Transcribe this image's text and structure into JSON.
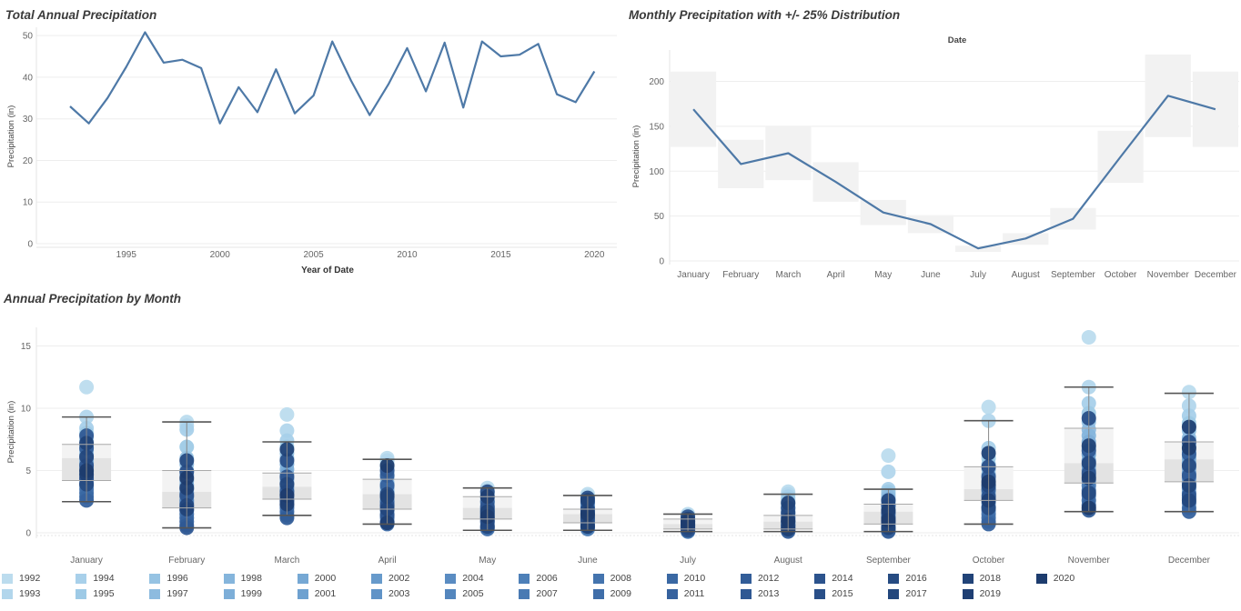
{
  "titles": {
    "annual": "Total Annual Precipitation",
    "monthly": "Monthly Precipitation with +/- 25% Distribution",
    "bymonth": "Annual Precipitation by Month"
  },
  "chart_data": [
    {
      "type": "line",
      "title": "Total Annual Precipitation",
      "xlabel": "Year of Date",
      "ylabel": "Precipitation (in)",
      "x": [
        1992,
        1993,
        1994,
        1995,
        1996,
        1997,
        1998,
        1999,
        2000,
        2001,
        2002,
        2003,
        2004,
        2005,
        2006,
        2007,
        2008,
        2009,
        2010,
        2011,
        2012,
        2013,
        2014,
        2015,
        2016,
        2017,
        2018,
        2019,
        2020
      ],
      "y": [
        33,
        28.9,
        35,
        42.5,
        50.8,
        43.5,
        44.2,
        42.2,
        28.9,
        37.6,
        31.6,
        41.9,
        31.3,
        35.6,
        48.6,
        39.2,
        30.9,
        38.3,
        47,
        36.6,
        48.3,
        32.7,
        48.6,
        45,
        45.4,
        48,
        35.9,
        34,
        41.4
      ],
      "xticks": [
        "1995",
        "2000",
        "2005",
        "2010",
        "2015",
        "2020"
      ],
      "xtick_values": [
        1995,
        2000,
        2005,
        2010,
        2015,
        2020
      ],
      "yticks": [
        "0",
        "10",
        "20",
        "30",
        "40",
        "50"
      ],
      "ylim": [
        0,
        52
      ],
      "color": "#4e79a7"
    },
    {
      "type": "line",
      "title": "Monthly Precipitation with +/- 25% Distribution",
      "header": "Date",
      "ylabel": "Precipitation (in)",
      "categories": [
        "January",
        "February",
        "March",
        "April",
        "May",
        "June",
        "July",
        "August",
        "September",
        "October",
        "November",
        "December"
      ],
      "values": [
        169,
        108,
        120,
        88,
        54,
        41,
        14,
        25,
        47,
        116,
        184,
        169
      ],
      "band_low": [
        127,
        81,
        90,
        66,
        40,
        31,
        10,
        18,
        35,
        87,
        138,
        127
      ],
      "band_high": [
        211,
        135,
        150,
        110,
        68,
        51,
        17,
        31,
        59,
        145,
        230,
        211
      ],
      "yticks": [
        "0",
        "50",
        "100",
        "150",
        "200"
      ],
      "ylim": [
        0,
        235
      ],
      "color": "#4e79a7",
      "band_color": "#f2f2f2"
    },
    {
      "type": "scatter",
      "title": "Annual Precipitation by Month",
      "ylabel": "Precipitation (in)",
      "categories": [
        "January",
        "February",
        "March",
        "April",
        "May",
        "June",
        "July",
        "August",
        "September",
        "October",
        "November",
        "December"
      ],
      "yticks": [
        "0",
        "5",
        "10",
        "15"
      ],
      "ylim": [
        0,
        16.5
      ],
      "whisker_low": [
        2.5,
        0.4,
        1.4,
        0.7,
        0.2,
        0.2,
        0.1,
        0.1,
        0.1,
        0.7,
        1.7,
        1.7
      ],
      "whisker_high": [
        9.3,
        8.9,
        7.3,
        5.9,
        3.6,
        3.0,
        1.5,
        3.1,
        3.5,
        9.0,
        11.7,
        11.2
      ],
      "box_q1": [
        4.2,
        2.0,
        2.7,
        1.9,
        1.1,
        0.8,
        0.3,
        0.3,
        0.7,
        2.6,
        4.0,
        4.1
      ],
      "box_median": [
        6.0,
        3.3,
        3.7,
        3.1,
        2.0,
        1.5,
        0.7,
        0.9,
        1.7,
        3.5,
        5.6,
        5.9
      ],
      "box_q3": [
        7.1,
        5.0,
        4.8,
        4.3,
        2.9,
        1.9,
        1.1,
        1.4,
        2.3,
        5.3,
        8.4,
        7.3
      ],
      "points": [
        [
          11.7,
          9.3,
          8.4,
          8.0,
          7.5,
          7.0,
          6.6,
          6.3,
          5.9,
          5.6,
          5.2,
          4.9,
          4.6,
          4.3,
          4.0,
          3.8,
          3.5,
          3.2,
          2.9,
          2.6,
          6.8,
          7.8,
          5.4,
          4.4,
          3.9,
          6.1,
          7.2,
          4.7,
          5.0
        ],
        [
          8.9,
          8.6,
          8.3,
          6.9,
          6.0,
          5.5,
          5.0,
          4.6,
          4.2,
          3.8,
          3.5,
          3.2,
          2.9,
          2.6,
          2.4,
          2.1,
          1.8,
          1.5,
          1.2,
          0.9,
          0.6,
          0.4,
          3.0,
          4.9,
          5.8,
          2.2,
          1.9,
          3.6,
          4.4
        ],
        [
          9.5,
          8.2,
          7.4,
          6.9,
          6.4,
          6.0,
          5.5,
          5.1,
          4.7,
          4.3,
          4.0,
          3.7,
          3.4,
          3.1,
          2.8,
          2.5,
          2.2,
          2.0,
          1.7,
          1.4,
          1.2,
          3.3,
          4.5,
          5.8,
          2.6,
          3.9,
          6.7,
          2.3,
          3.0
        ],
        [
          6.0,
          5.8,
          5.5,
          5.2,
          4.8,
          4.4,
          4.0,
          3.6,
          3.3,
          3.0,
          2.7,
          2.4,
          2.1,
          1.8,
          1.5,
          1.2,
          0.9,
          0.7,
          2.5,
          3.8,
          4.6,
          5.0,
          1.4,
          2.2,
          3.1,
          1.9,
          2.9,
          0.8,
          5.4
        ],
        [
          3.6,
          3.4,
          3.2,
          3.0,
          2.8,
          2.6,
          2.4,
          2.2,
          2.0,
          1.8,
          1.6,
          1.4,
          1.2,
          1.0,
          0.8,
          0.6,
          0.4,
          0.3,
          1.9,
          2.5,
          1.5,
          0.9,
          2.1,
          3.3,
          1.1,
          0.5,
          1.7,
          2.9,
          1.3
        ],
        [
          3.1,
          2.9,
          2.7,
          2.5,
          2.3,
          2.1,
          1.9,
          1.7,
          1.5,
          1.3,
          1.1,
          0.9,
          0.7,
          0.5,
          0.4,
          0.3,
          1.6,
          2.4,
          1.0,
          0.6,
          2.0,
          1.4,
          0.8,
          2.8,
          1.2,
          1.8,
          2.6,
          0.5,
          1.5
        ],
        [
          1.5,
          1.4,
          1.3,
          1.2,
          1.1,
          1.0,
          0.9,
          0.8,
          0.7,
          0.6,
          0.5,
          0.4,
          0.3,
          0.2,
          0.1,
          0.1,
          0.6,
          0.9,
          1.0,
          0.3,
          0.5,
          0.7,
          1.3,
          0.2,
          0.8,
          0.4,
          1.1,
          0.6,
          0.9
        ],
        [
          3.3,
          3.1,
          2.9,
          2.7,
          2.5,
          2.3,
          2.1,
          1.9,
          1.7,
          1.5,
          1.3,
          1.1,
          0.9,
          0.8,
          0.7,
          0.6,
          0.5,
          0.4,
          0.3,
          0.2,
          0.1,
          1.2,
          2.0,
          0.9,
          1.6,
          0.6,
          2.4,
          0.3,
          1.0
        ],
        [
          6.2,
          4.9,
          3.5,
          3.3,
          3.1,
          2.9,
          2.7,
          2.5,
          2.3,
          2.1,
          1.9,
          1.7,
          1.5,
          1.3,
          1.1,
          0.9,
          0.7,
          0.5,
          0.3,
          0.2,
          0.1,
          1.6,
          2.2,
          0.8,
          1.2,
          2.6,
          0.4,
          1.8,
          1.0
        ],
        [
          10.1,
          9.0,
          6.8,
          6.0,
          5.5,
          5.1,
          4.7,
          4.3,
          3.9,
          3.6,
          3.3,
          3.0,
          2.7,
          2.4,
          2.1,
          1.8,
          1.5,
          1.2,
          0.9,
          0.7,
          3.5,
          4.5,
          2.9,
          5.3,
          2.0,
          3.8,
          6.4,
          2.6,
          4.1
        ],
        [
          15.7,
          11.7,
          10.4,
          9.6,
          8.9,
          8.3,
          7.8,
          7.3,
          6.8,
          6.3,
          5.8,
          5.4,
          5.0,
          4.6,
          4.2,
          3.8,
          3.4,
          3.0,
          2.6,
          2.2,
          1.8,
          6.6,
          4.8,
          9.2,
          3.2,
          5.6,
          7.0,
          4.4,
          2.0
        ],
        [
          11.3,
          10.2,
          9.4,
          8.8,
          8.2,
          7.6,
          7.0,
          6.5,
          6.0,
          5.6,
          5.2,
          4.8,
          4.4,
          4.0,
          3.6,
          3.2,
          2.8,
          2.4,
          2.0,
          1.7,
          6.3,
          4.6,
          3.0,
          7.3,
          5.4,
          2.6,
          3.8,
          8.5,
          6.8
        ]
      ],
      "point_colors": [
        "#bcdcee",
        "#b2d6ec",
        "#a8d0ea",
        "#9ecae6",
        "#96c3e3",
        "#8dbbdf",
        "#85b5dc",
        "#7daed8",
        "#76a8d4",
        "#6ea1d0",
        "#679acb",
        "#6093c7",
        "#5a8cc2",
        "#5486bd",
        "#4e80b8",
        "#497ab3",
        "#4474ae",
        "#3f6ea9",
        "#3a68a3",
        "#36629e",
        "#325d98",
        "#2f5893",
        "#2c538d",
        "#294f88",
        "#264b82",
        "#23477d",
        "#214378",
        "#1f3f73",
        "#1d3c6e"
      ]
    }
  ],
  "legend": {
    "row1": [
      {
        "label": "1992",
        "color": "#bcdcee"
      },
      {
        "label": "1994",
        "color": "#a8d0ea"
      },
      {
        "label": "1996",
        "color": "#96c3e3"
      },
      {
        "label": "1998",
        "color": "#85b5dc"
      },
      {
        "label": "2000",
        "color": "#76a8d4"
      },
      {
        "label": "2002",
        "color": "#679acb"
      },
      {
        "label": "2004",
        "color": "#5a8cc2"
      },
      {
        "label": "2006",
        "color": "#4e80b8"
      },
      {
        "label": "2008",
        "color": "#4474ae"
      },
      {
        "label": "2010",
        "color": "#3a68a3"
      },
      {
        "label": "2012",
        "color": "#325d98"
      },
      {
        "label": "2014",
        "color": "#2c538d"
      },
      {
        "label": "2016",
        "color": "#264b82"
      },
      {
        "label": "2018",
        "color": "#214378"
      },
      {
        "label": "2020",
        "color": "#1d3c6e"
      }
    ],
    "row2": [
      {
        "label": "1993",
        "color": "#b2d6ec"
      },
      {
        "label": "1995",
        "color": "#9ecae6"
      },
      {
        "label": "1997",
        "color": "#8dbbdf"
      },
      {
        "label": "1999",
        "color": "#7daed8"
      },
      {
        "label": "2001",
        "color": "#6ea1d0"
      },
      {
        "label": "2003",
        "color": "#6093c7"
      },
      {
        "label": "2005",
        "color": "#5486bd"
      },
      {
        "label": "2007",
        "color": "#497ab3"
      },
      {
        "label": "2009",
        "color": "#3f6ea9"
      },
      {
        "label": "2011",
        "color": "#36629e"
      },
      {
        "label": "2013",
        "color": "#2f5893"
      },
      {
        "label": "2015",
        "color": "#294f88"
      },
      {
        "label": "2017",
        "color": "#23477d"
      },
      {
        "label": "2019",
        "color": "#1f3f73"
      }
    ]
  }
}
